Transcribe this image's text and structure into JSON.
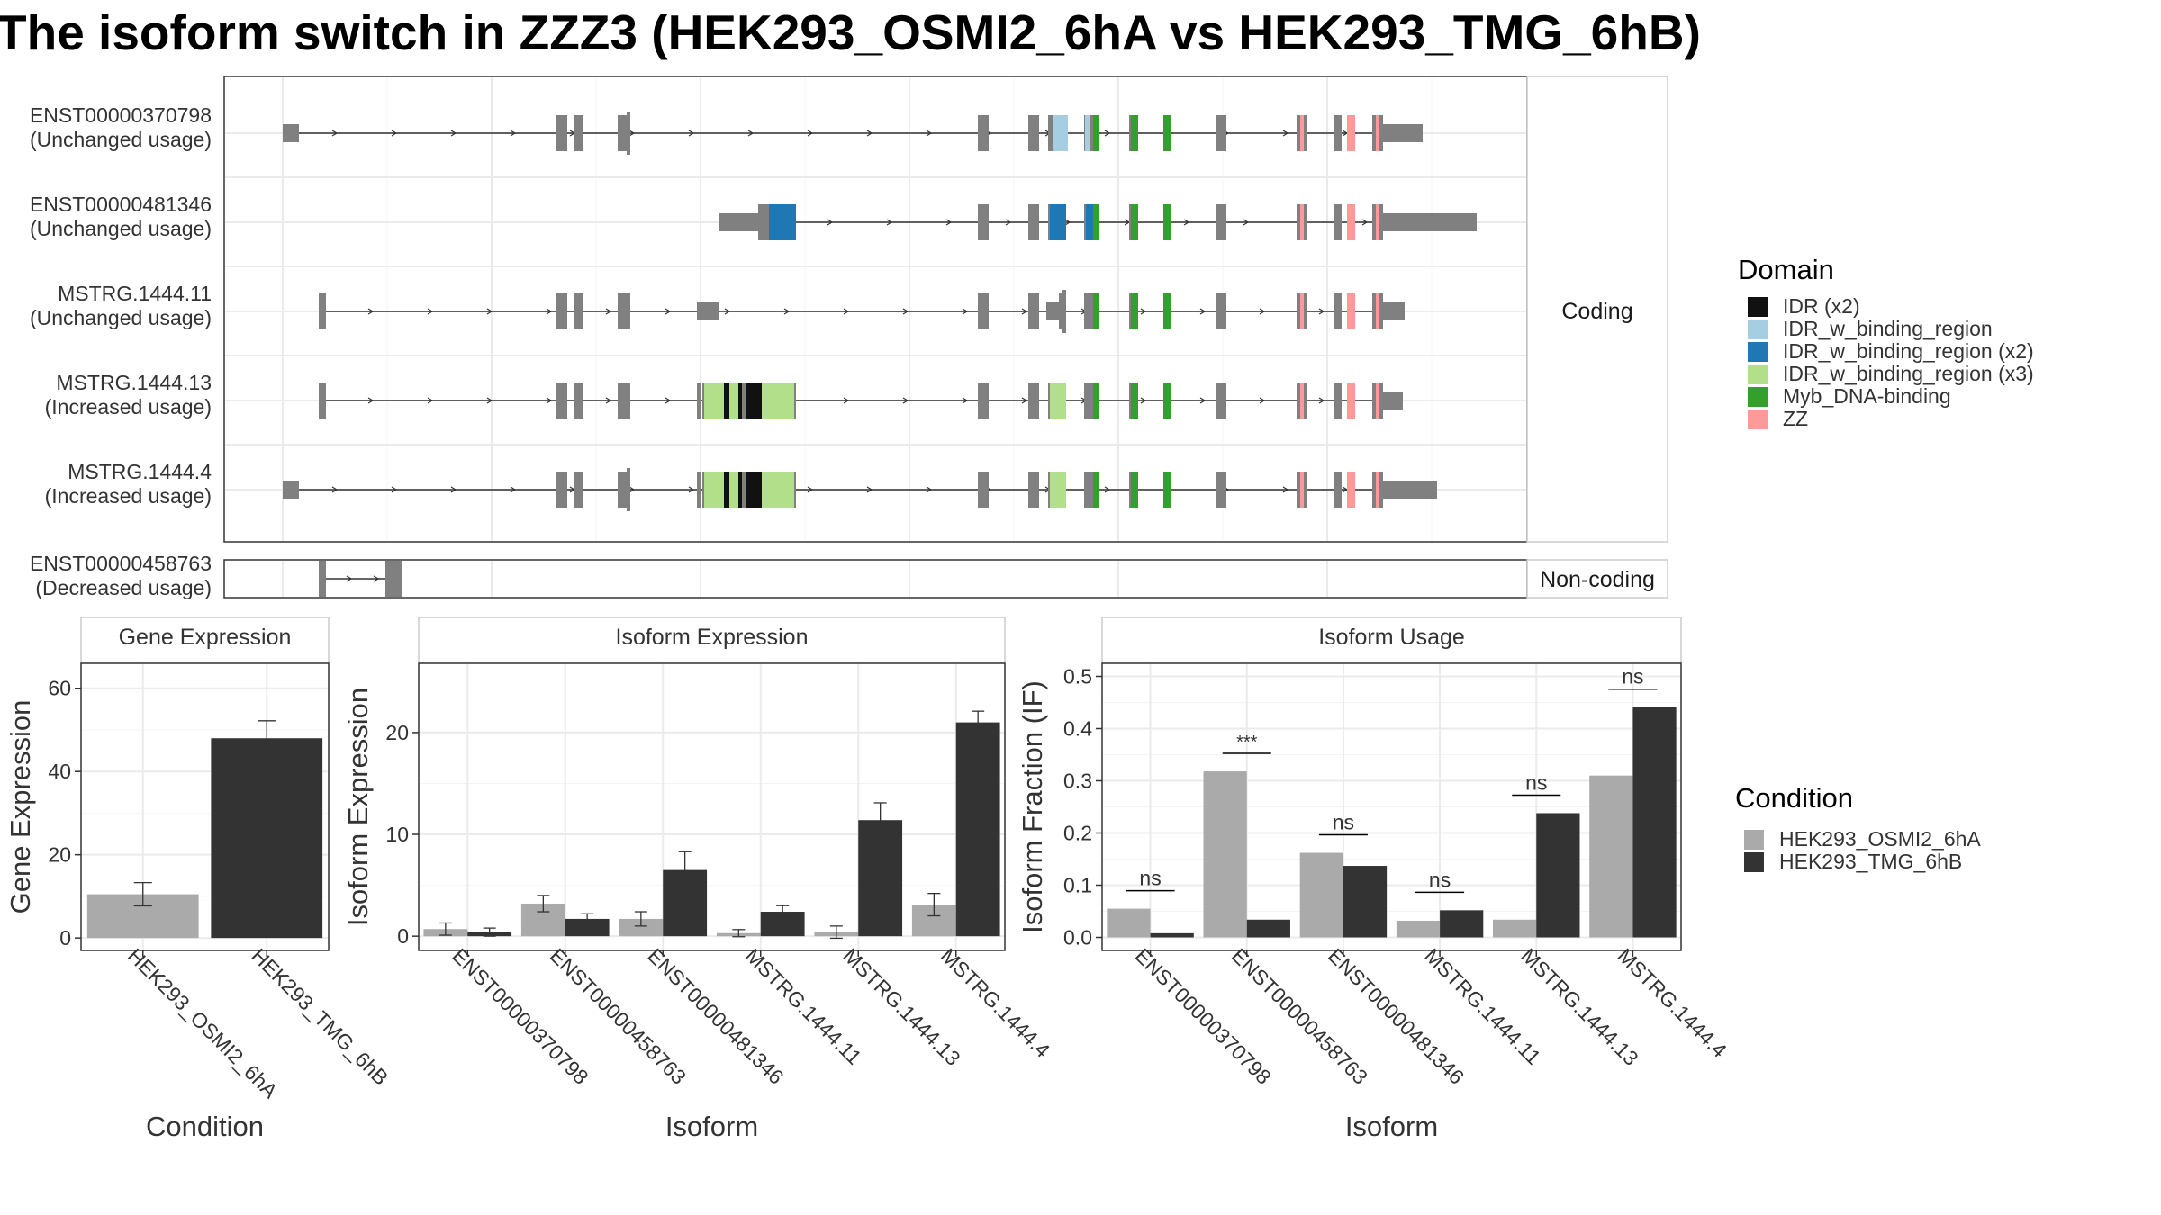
{
  "title": "The isoform switch in ZZZ3 (HEK293_OSMI2_6hA vs HEK293_TMG_6hB)",
  "colors": {
    "cond_a": "#AAAAAA",
    "cond_b": "#333333",
    "exon": "#808080",
    "domains": {
      "IDR": "#111111",
      "IDR_w_binding_region": "#A6CEE3",
      "IDR_w_binding_region_x2": "#1F78B4",
      "IDR_w_binding_region_x3": "#B2DF8A",
      "Myb_DNA-binding": "#33A02C",
      "ZZ": "#FB9A99"
    }
  },
  "structure_panel": {
    "coding_strip": "Coding",
    "noncoding_strip": "Non-coding",
    "transcripts": [
      {
        "id": "ENST00000370798",
        "usage": "(Unchanged usage)",
        "coding": true
      },
      {
        "id": "ENST00000481346",
        "usage": "(Unchanged usage)",
        "coding": true
      },
      {
        "id": "MSTRG.1444.11",
        "usage": "(Unchanged usage)",
        "coding": true
      },
      {
        "id": "MSTRG.1444.13",
        "usage": "(Increased usage)",
        "coding": true
      },
      {
        "id": "MSTRG.1444.4",
        "usage": "(Increased usage)",
        "coding": true
      },
      {
        "id": "ENST00000458763",
        "usage": "(Decreased usage)",
        "coding": false
      }
    ]
  },
  "domain_legend": {
    "title": "Domain",
    "items": [
      {
        "label": "IDR (x2)",
        "color": "#111111"
      },
      {
        "label": "IDR_w_binding_region",
        "color": "#A6CEE3"
      },
      {
        "label": "IDR_w_binding_region (x2)",
        "color": "#1F78B4"
      },
      {
        "label": "IDR_w_binding_region (x3)",
        "color": "#B2DF8A"
      },
      {
        "label": "Myb_DNA-binding",
        "color": "#33A02C"
      },
      {
        "label": "ZZ",
        "color": "#FB9A99"
      }
    ]
  },
  "condition_legend": {
    "title": "Condition",
    "items": [
      {
        "label": "HEK293_OSMI2_6hA",
        "color": "#AAAAAA"
      },
      {
        "label": "HEK293_TMG_6hB",
        "color": "#333333"
      }
    ]
  },
  "chart_data": [
    {
      "type": "bar",
      "title": "Gene Expression",
      "xlabel": "Condition",
      "ylabel": "Gene Expression",
      "ylim": [
        -3,
        66
      ],
      "yticks": [
        0,
        20,
        40,
        60
      ],
      "categories": [
        "HEK293_OSMI2_6hA",
        "HEK293_TMG_6hB"
      ],
      "values": [
        10.5,
        48
      ],
      "errors": [
        2.8,
        4.2
      ],
      "colors": [
        "#AAAAAA",
        "#333333"
      ]
    },
    {
      "type": "bar",
      "title": "Isoform Expression",
      "xlabel": "Isoform",
      "ylabel": "Isoform Expression",
      "ylim": [
        -1.4,
        26.8
      ],
      "yticks": [
        0,
        10,
        20
      ],
      "categories": [
        "ENST00000370798",
        "ENST00000458763",
        "ENST00000481346",
        "MSTRG.1444.11",
        "MSTRG.1444.13",
        "MSTRG.1444.4"
      ],
      "series": [
        {
          "name": "HEK293_OSMI2_6hA",
          "values": [
            0.7,
            3.2,
            1.7,
            0.3,
            0.4,
            3.1
          ],
          "errors": [
            0.6,
            0.8,
            0.7,
            0.35,
            0.6,
            1.1
          ]
        },
        {
          "name": "HEK293_TMG_6hB",
          "values": [
            0.4,
            1.7,
            6.5,
            2.4,
            11.4,
            21
          ],
          "errors": [
            0.4,
            0.5,
            1.8,
            0.6,
            1.7,
            1.1
          ]
        }
      ]
    },
    {
      "type": "bar",
      "title": "Isoform Usage",
      "xlabel": "Isoform",
      "ylabel": "Isoform Fraction (IF)",
      "ylim": [
        -0.025,
        0.525
      ],
      "yticks": [
        0.0,
        0.1,
        0.2,
        0.3,
        0.4,
        0.5
      ],
      "ytick_labels": [
        "0.0",
        "0.1",
        "0.2",
        "0.3",
        "0.4",
        "0.5"
      ],
      "categories": [
        "ENST00000370798",
        "ENST00000458763",
        "ENST00000481346",
        "MSTRG.1444.11",
        "MSTRG.1444.13",
        "MSTRG.1444.4"
      ],
      "series": [
        {
          "name": "HEK293_OSMI2_6hA",
          "values": [
            0.055,
            0.318,
            0.162,
            0.032,
            0.034,
            0.31
          ]
        },
        {
          "name": "HEK293_TMG_6hB",
          "values": [
            0.008,
            0.034,
            0.137,
            0.052,
            0.238,
            0.441
          ]
        }
      ],
      "significance": [
        "ns",
        "***",
        "ns",
        "ns",
        "ns",
        "ns"
      ]
    }
  ]
}
